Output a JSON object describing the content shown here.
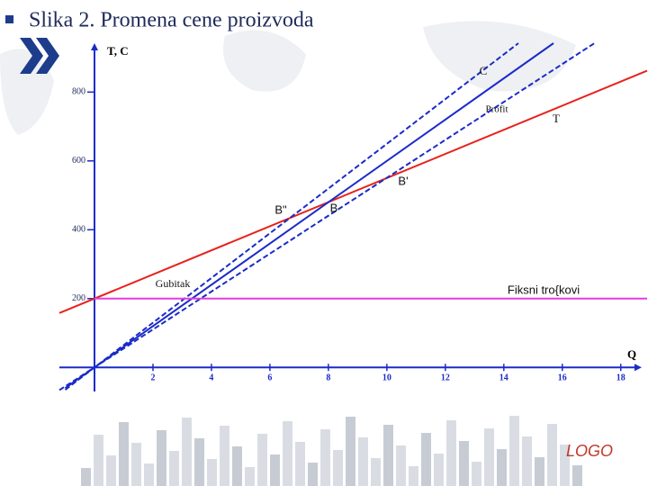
{
  "title": "Slika 2. Promena cene proizvoda",
  "logo": "LOGO",
  "chart_data": {
    "type": "line",
    "xlabel": "Q",
    "ylabel": "T, C",
    "xlim": [
      -1.2,
      18.9
    ],
    "ylim": [
      -70,
      942
    ],
    "xticks": [
      2,
      4,
      6,
      8,
      10,
      12,
      14,
      16,
      18
    ],
    "yticks": [
      200,
      400,
      600,
      800
    ],
    "series": [
      {
        "color": "#e8221c",
        "dash": false,
        "x": [
          -1.2,
          18.9
        ],
        "values": [
          158,
          862
        ]
      },
      {
        "color": "#1b2bc8",
        "dash": false,
        "x": [
          -1,
          15.7
        ],
        "values": [
          -60,
          942
        ]
      },
      {
        "color": "#1b2bc8",
        "dash": true,
        "x": [
          -1,
          14.5
        ],
        "values": [
          -65,
          942
        ]
      },
      {
        "color": "#1b2bc8",
        "dash": true,
        "x": [
          -1.2,
          17.1
        ],
        "values": [
          -66,
          942
        ]
      },
      {
        "color": "#e23ce0",
        "dash": false,
        "x": [
          0,
          18.9
        ],
        "values": [
          200,
          200
        ]
      }
    ],
    "annotations": [
      "C",
      "Profit",
      "T",
      "B\"",
      "B",
      "B'",
      "Gubitak",
      "Fiksni tro{kovi"
    ]
  }
}
